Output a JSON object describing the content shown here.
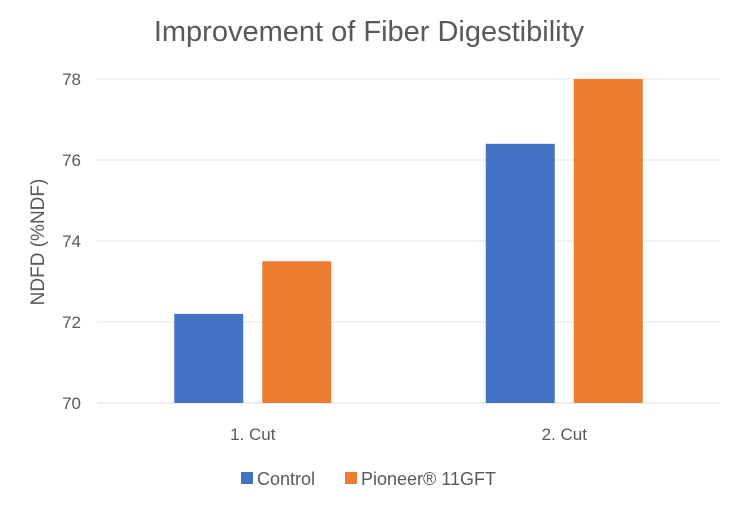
{
  "chart_data": {
    "type": "bar",
    "title": "Improvement of Fiber Digestibility",
    "xlabel": "",
    "ylabel": "NDFD (%NDF)",
    "categories": [
      "1. Cut",
      "2. Cut"
    ],
    "series": [
      {
        "name": "Control",
        "color": "#4472C4",
        "values": [
          72.2,
          76.4
        ]
      },
      {
        "name": "Pioneer® 11GFT",
        "color": "#ED7D31",
        "values": [
          73.5,
          78.0
        ]
      }
    ],
    "ylim": [
      70,
      78
    ],
    "yticks": [
      70,
      72,
      74,
      76,
      78
    ],
    "grid": true,
    "legend_position": "bottom"
  }
}
